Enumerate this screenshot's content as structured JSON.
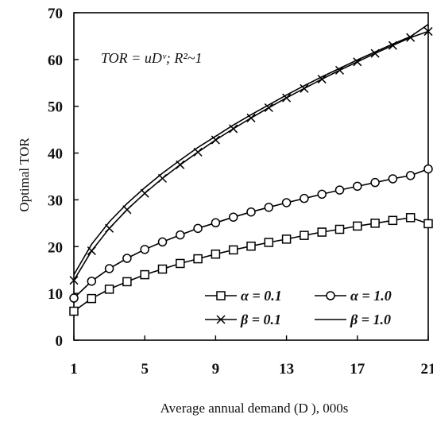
{
  "chart_data": {
    "type": "line",
    "xlabel": "Average annual demand (D ), 000s",
    "ylabel": "Optimal TOR",
    "annotation": "TOR = uDᵛ;  R²~1",
    "xlim": [
      1,
      21
    ],
    "ylim": [
      0,
      70
    ],
    "x_ticks": [
      1,
      5,
      9,
      13,
      17,
      21
    ],
    "y_ticks": [
      0,
      10,
      20,
      30,
      40,
      50,
      60,
      70
    ],
    "grid": false,
    "legend_position": "lower-right",
    "x": [
      1,
      2,
      3,
      4,
      5,
      6,
      7,
      8,
      9,
      10,
      11,
      12,
      13,
      14,
      15,
      16,
      17,
      18,
      19,
      20,
      21
    ],
    "series": [
      {
        "name": "α = 0.1",
        "marker": "square",
        "values": [
          6.2,
          8.9,
          10.9,
          12.5,
          14.0,
          15.2,
          16.4,
          17.4,
          18.4,
          19.3,
          20.1,
          20.9,
          21.6,
          22.4,
          23.1,
          23.7,
          24.4,
          25.0,
          25.6,
          26.2,
          24.9
        ]
      },
      {
        "name": "α = 1.0",
        "marker": "circle",
        "values": [
          9.0,
          12.6,
          15.3,
          17.5,
          19.4,
          21.0,
          22.5,
          23.9,
          25.1,
          26.3,
          27.4,
          28.4,
          29.4,
          30.3,
          31.2,
          32.1,
          32.9,
          33.7,
          34.5,
          35.2,
          36.6
        ]
      },
      {
        "name": "β = 0.1",
        "marker": "x",
        "values": [
          12.8,
          19.1,
          23.9,
          27.9,
          31.4,
          34.6,
          37.5,
          40.2,
          42.8,
          45.2,
          47.5,
          49.7,
          51.8,
          53.8,
          55.8,
          57.7,
          59.5,
          61.3,
          63.0,
          64.7,
          66.0
        ]
      },
      {
        "name": "β = 1.0",
        "marker": "none",
        "values": [
          14.0,
          20.5,
          25.3,
          29.2,
          32.6,
          35.7,
          38.5,
          41.2,
          43.6,
          46.0,
          48.2,
          50.3,
          52.4,
          54.4,
          56.3,
          58.1,
          59.9,
          61.6,
          63.3,
          64.9,
          67.5
        ]
      }
    ]
  }
}
